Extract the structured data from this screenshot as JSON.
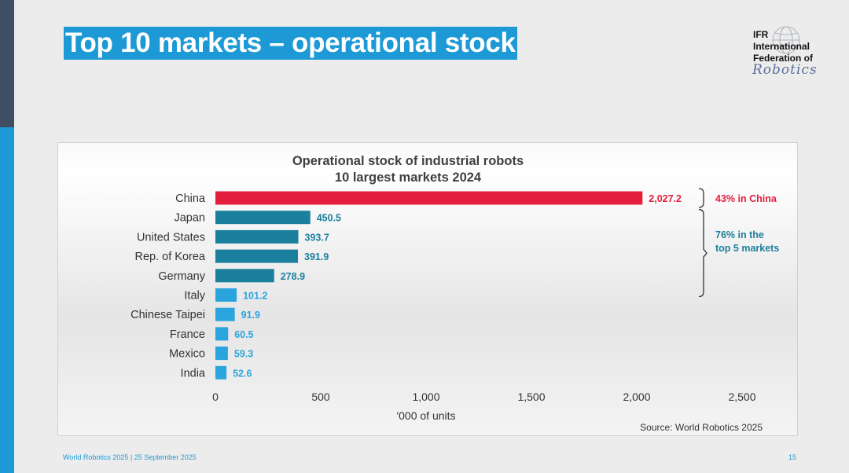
{
  "slide": {
    "title": "Top 10 markets – operational stock",
    "footer": "World Robotics 2025  | 25 September 2025",
    "page_number": "15"
  },
  "logo": {
    "lines": [
      "IFR",
      "International",
      "Federation of",
      "Robotics"
    ]
  },
  "chart_data": {
    "type": "bar",
    "orientation": "horizontal",
    "title": "Operational stock of industrial robots",
    "subtitle": "10 largest markets 2024",
    "categories": [
      "China",
      "Japan",
      "United States",
      "Rep. of Korea",
      "Germany",
      "Italy",
      "Chinese Taipei",
      "France",
      "Mexico",
      "India"
    ],
    "values": [
      2027.2,
      450.5,
      393.7,
      391.9,
      278.9,
      101.2,
      91.9,
      60.5,
      59.3,
      52.6
    ],
    "value_labels": [
      "2,027.2",
      "450.5",
      "393.7",
      "391.9",
      "278.9",
      "101.2",
      "91.9",
      "60.5",
      "59.3",
      "52.6"
    ],
    "xlabel": "'000 of units",
    "ylabel": "",
    "xlim": [
      0,
      2500
    ],
    "xticks": [
      "0",
      "500",
      "1,000",
      "1,500",
      "2,000",
      "2,500"
    ],
    "xtick_values": [
      0,
      500,
      1000,
      1500,
      2000,
      2500
    ],
    "grid": false,
    "bar_colors": [
      "#e31e3c",
      "#1b7f9e",
      "#1b7f9e",
      "#1b7f9e",
      "#1b7f9e",
      "#2aa4dc",
      "#2aa4dc",
      "#2aa4dc",
      "#2aa4dc",
      "#2aa4dc"
    ],
    "annotations": [
      {
        "text": "43% in China",
        "color": "#e31e3c",
        "spans": [
          "China"
        ]
      },
      {
        "text": "76% in the\ntop 5 markets",
        "color": "#1b7f9e",
        "spans": [
          "China",
          "Japan",
          "United States",
          "Rep. of Korea",
          "Germany"
        ]
      }
    ],
    "source": "Source: World Robotics 2025"
  }
}
